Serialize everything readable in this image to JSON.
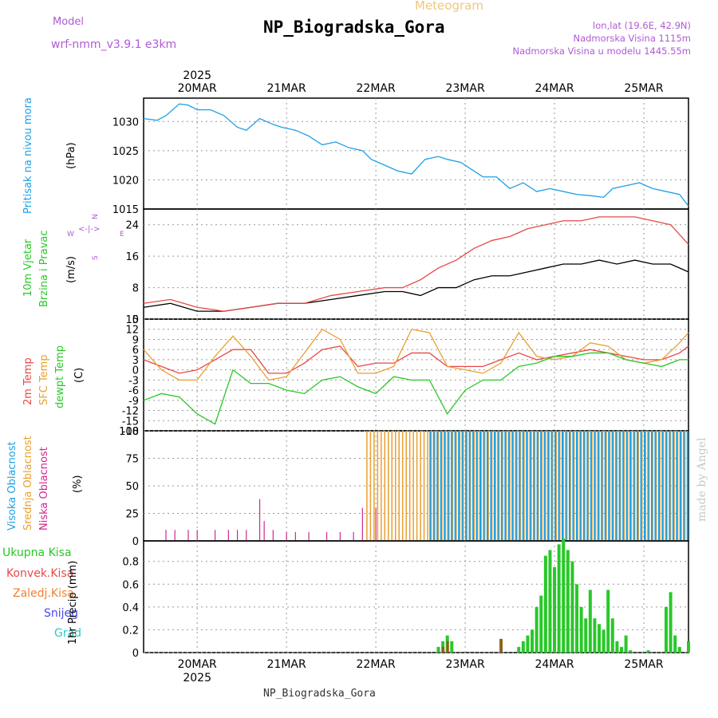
{
  "header": {
    "model_label": "Model",
    "model_name": "wrf-nmm_v3.9.1 e3km",
    "meteogram_label": "Meteogram",
    "station": "NP_Biogradska_Gora",
    "lonlat": "lon,lat (19.6E, 42.9N)",
    "elevation": "Nadmorska Visina 1115m",
    "model_elevation": "Nadmorska Visina u modelu 1445.55m"
  },
  "footer": {
    "station": "NP_Biogradska_Gora",
    "credit": "made by Angel"
  },
  "colors": {
    "pressure": "#1ea0e6",
    "temp2m": "#e84848",
    "sfc": "#e8a030",
    "dewpt": "#28c828",
    "high_cloud": "#1ea0e6",
    "mid_cloud": "#e8a030",
    "low_cloud": "#d02890",
    "precip_total": "#28c828",
    "precip_conv": "#e84848",
    "precip_frozen": "#f08030",
    "snow": "#4848e8",
    "hail": "#28c8c8"
  },
  "chart_data": [
    {
      "type": "line",
      "name": "pressure",
      "ylabel_rotated": "Pritisak na nivou mora",
      "unit": "(hPa)",
      "x_range_days": [
        -0.6,
        5.5
      ],
      "ylim": [
        1015,
        1034
      ],
      "yticks": [
        1015,
        1020,
        1025,
        1030
      ],
      "top_date_labels": [
        "20MAR",
        "21MAR",
        "22MAR",
        "23MAR",
        "24MAR",
        "25MAR"
      ],
      "top_year": "2025",
      "grid": true,
      "series": [
        {
          "name": "MSLP",
          "x": [
            -0.6,
            -0.45,
            -0.35,
            -0.2,
            -0.1,
            0.0,
            0.15,
            0.3,
            0.45,
            0.55,
            0.7,
            0.85,
            0.95,
            1.1,
            1.25,
            1.4,
            1.55,
            1.7,
            1.85,
            1.95,
            2.1,
            2.25,
            2.4,
            2.55,
            2.7,
            2.8,
            2.95,
            3.1,
            3.2,
            3.35,
            3.5,
            3.65,
            3.8,
            3.95,
            4.1,
            4.25,
            4.4,
            4.55,
            4.65,
            4.8,
            4.95,
            5.1,
            5.25,
            5.4,
            5.5
          ],
          "values": [
            1030.5,
            1030.2,
            1031,
            1033,
            1032.8,
            1032,
            1032,
            1031,
            1029,
            1028.5,
            1030.5,
            1029.5,
            1029,
            1028.5,
            1027.5,
            1026,
            1026.5,
            1025.5,
            1025,
            1023.5,
            1022.5,
            1021.5,
            1021,
            1023.5,
            1024,
            1023.5,
            1023,
            1021.5,
            1020.5,
            1020.5,
            1018.5,
            1019.5,
            1018,
            1018.5,
            1018,
            1017.5,
            1017.3,
            1017,
            1018.5,
            1019,
            1019.5,
            1018.5,
            1018,
            1017.5,
            1015.5
          ]
        }
      ]
    },
    {
      "type": "line",
      "name": "wind",
      "ylabel_rotated": [
        "10m Vjetar",
        "Brzina i Pravac"
      ],
      "unit": "(m/s)",
      "compass": {
        "n": "N",
        "s": "S",
        "e": "E",
        "w": "W"
      },
      "ylim": [
        0,
        28
      ],
      "yticks": [
        0,
        8,
        16,
        24
      ],
      "grid": true,
      "series": [
        {
          "name": "wind speed",
          "x": [
            -0.6,
            -0.3,
            0,
            0.3,
            0.6,
            0.9,
            1.2,
            1.5,
            1.8,
            2.1,
            2.3,
            2.5,
            2.7,
            2.9,
            3.1,
            3.3,
            3.5,
            3.7,
            3.9,
            4.1,
            4.3,
            4.5,
            4.7,
            4.9,
            5.1,
            5.3,
            5.5
          ],
          "values": [
            3,
            4,
            2,
            2,
            3,
            4,
            4,
            5,
            6,
            7,
            7,
            6,
            8,
            8,
            10,
            11,
            11,
            12,
            13,
            14,
            14,
            15,
            14,
            15,
            14,
            14,
            12
          ]
        },
        {
          "name": "gust",
          "x": [
            -0.6,
            -0.3,
            0,
            0.3,
            0.6,
            0.9,
            1.2,
            1.5,
            1.8,
            2.1,
            2.3,
            2.5,
            2.7,
            2.9,
            3.1,
            3.3,
            3.5,
            3.7,
            3.9,
            4.1,
            4.3,
            4.5,
            4.7,
            4.9,
            5.1,
            5.3,
            5.5
          ],
          "values": [
            4,
            5,
            3,
            2,
            3,
            4,
            4,
            6,
            7,
            8,
            8,
            10,
            13,
            15,
            18,
            20,
            21,
            23,
            24,
            25,
            25,
            26,
            26,
            26,
            25,
            24,
            19
          ]
        }
      ]
    },
    {
      "type": "line",
      "name": "temperature",
      "ylabel_rotated": [
        "2m Temp",
        "SFC Temp",
        "dewpt Temp"
      ],
      "unit": "(C)",
      "ylim": [
        -18,
        15
      ],
      "yticks": [
        -18,
        -15,
        -12,
        -9,
        -6,
        -3,
        0,
        3,
        6,
        9,
        12,
        15
      ],
      "grid": true,
      "series": [
        {
          "name": "2m Temp",
          "x": [
            -0.6,
            -0.4,
            -0.2,
            0,
            0.2,
            0.4,
            0.6,
            0.8,
            1.0,
            1.2,
            1.4,
            1.6,
            1.8,
            2.0,
            2.2,
            2.4,
            2.6,
            2.8,
            3.0,
            3.2,
            3.4,
            3.6,
            3.8,
            4.0,
            4.2,
            4.4,
            4.6,
            4.8,
            5.0,
            5.2,
            5.4,
            5.5
          ],
          "values": [
            3,
            1,
            -1,
            0,
            3,
            6,
            6,
            -1,
            -1,
            2,
            6,
            7,
            1,
            2,
            2,
            5,
            5,
            1,
            1,
            1,
            3,
            5,
            3,
            4,
            5,
            6,
            5,
            4,
            3,
            3,
            5,
            7
          ]
        },
        {
          "name": "SFC Temp",
          "x": [
            -0.6,
            -0.4,
            -0.2,
            0,
            0.2,
            0.4,
            0.6,
            0.8,
            1.0,
            1.2,
            1.4,
            1.6,
            1.8,
            2.0,
            2.2,
            2.4,
            2.6,
            2.8,
            3.0,
            3.2,
            3.4,
            3.6,
            3.8,
            4.0,
            4.2,
            4.4,
            4.6,
            4.8,
            5.0,
            5.2,
            5.4,
            5.5
          ],
          "values": [
            6,
            0,
            -3,
            -3,
            4,
            10,
            4,
            -3,
            -2,
            5,
            12,
            9,
            -1,
            -1,
            1,
            12,
            11,
            1,
            0,
            -1,
            2,
            11,
            4,
            3,
            4,
            8,
            7,
            3,
            2,
            3,
            8,
            11
          ]
        },
        {
          "name": "dewpt Temp",
          "x": [
            -0.6,
            -0.4,
            -0.2,
            0,
            0.2,
            0.4,
            0.6,
            0.8,
            1.0,
            1.2,
            1.4,
            1.6,
            1.8,
            2.0,
            2.2,
            2.4,
            2.6,
            2.8,
            3.0,
            3.2,
            3.4,
            3.6,
            3.8,
            4.0,
            4.2,
            4.4,
            4.6,
            4.8,
            5.0,
            5.2,
            5.4,
            5.5
          ],
          "values": [
            -9,
            -7,
            -8,
            -13,
            -16,
            0,
            -4,
            -4,
            -6,
            -7,
            -3,
            -2,
            -5,
            -7,
            -2,
            -3,
            -3,
            -13,
            -6,
            -3,
            -3,
            1,
            2,
            4,
            4,
            5,
            5,
            3,
            2,
            1,
            3,
            3
          ]
        }
      ]
    },
    {
      "type": "bar",
      "name": "cloud",
      "ylabel_rotated": [
        "Visoka Oblacnost",
        "Srednja Oblacnost",
        "Niska Oblacnost"
      ],
      "unit": "(%)",
      "ylim": [
        0,
        100
      ],
      "yticks": [
        0,
        25,
        50,
        75,
        100
      ],
      "grid": true,
      "note": "Hourly high/mid/low cloud fraction; sparse low cloud (~10-40%) before 22MAR, mid/high overcast (~100%) from 22MAR onward",
      "series": [
        {
          "name": "Visoka Oblacnost",
          "from_day": 2.6,
          "to_day": 5.5,
          "value": 100
        },
        {
          "name": "Srednja Oblacnost",
          "from_day": 1.9,
          "to_day": 5.5,
          "value": 100
        },
        {
          "name": "Niska Oblacnost",
          "points": [
            [
              -0.35,
              10
            ],
            [
              -0.25,
              10
            ],
            [
              -0.1,
              10
            ],
            [
              0,
              10
            ],
            [
              0.2,
              10
            ],
            [
              0.35,
              10
            ],
            [
              0.45,
              10
            ],
            [
              0.55,
              10
            ],
            [
              0.7,
              38
            ],
            [
              0.75,
              18
            ],
            [
              0.85,
              10
            ],
            [
              1.0,
              8
            ],
            [
              1.1,
              8
            ],
            [
              1.25,
              8
            ],
            [
              1.45,
              8
            ],
            [
              1.6,
              8
            ],
            [
              1.75,
              8
            ],
            [
              1.85,
              30
            ],
            [
              2.0,
              30
            ]
          ]
        }
      ]
    },
    {
      "type": "bar",
      "name": "precipitation",
      "legend": [
        "Ukupna Kisa",
        "Konvek.Kisa",
        "Zaledj.Kisa",
        "Snijeg",
        "Grad"
      ],
      "ylabel_rotated": "1hr Precip (mm)",
      "ylim": [
        0,
        0.98
      ],
      "yticks": [
        0,
        0.2,
        0.4,
        0.6,
        0.8
      ],
      "bottom_date_labels": [
        "20MAR",
        "21MAR",
        "22MAR",
        "23MAR",
        "24MAR",
        "25MAR"
      ],
      "bottom_year": "2025",
      "grid": true,
      "series": [
        {
          "name": "Ukupna Kisa",
          "x": [
            2.7,
            2.75,
            2.8,
            2.85,
            3.4,
            3.6,
            3.65,
            3.7,
            3.75,
            3.8,
            3.85,
            3.9,
            3.95,
            4.0,
            4.05,
            4.1,
            4.15,
            4.2,
            4.25,
            4.3,
            4.35,
            4.4,
            4.45,
            4.5,
            4.55,
            4.6,
            4.65,
            4.7,
            4.75,
            4.8,
            4.85,
            5.05,
            5.25,
            5.3,
            5.35,
            5.4,
            5.5
          ],
          "values": [
            0.05,
            0.1,
            0.15,
            0.1,
            0.12,
            0.05,
            0.1,
            0.15,
            0.2,
            0.4,
            0.5,
            0.85,
            0.9,
            0.75,
            0.95,
            1.0,
            0.9,
            0.8,
            0.6,
            0.4,
            0.3,
            0.55,
            0.3,
            0.25,
            0.2,
            0.55,
            0.3,
            0.1,
            0.05,
            0.15,
            0.02,
            0.02,
            0.4,
            0.53,
            0.15,
            0.05,
            0.1
          ]
        },
        {
          "name": "Konvek.Kisa",
          "x": [
            2.75,
            2.8,
            3.4
          ],
          "values": [
            0.05,
            0.1,
            0.12
          ]
        }
      ]
    }
  ]
}
